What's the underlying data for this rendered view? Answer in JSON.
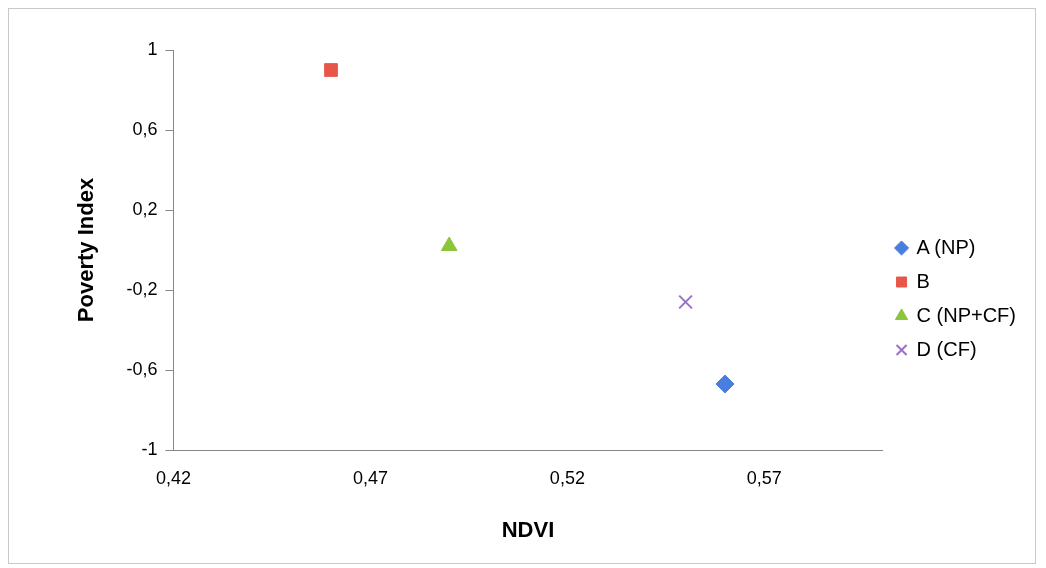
{
  "chart_data": {
    "type": "scatter",
    "xlabel": "NDVI",
    "ylabel": "Poverty Index",
    "series": [
      {
        "name": "A (NP)",
        "color": "#4a7ede",
        "x": [
          0.56
        ],
        "values": [
          -0.67
        ],
        "marker": "diamond"
      },
      {
        "name": "B",
        "color": "#e8564a",
        "x": [
          0.46
        ],
        "values": [
          0.9
        ],
        "marker": "square"
      },
      {
        "name": "C (NP+CF)",
        "color": "#8cc43c",
        "x": [
          0.49
        ],
        "values": [
          0.02
        ],
        "marker": "triangle"
      },
      {
        "name": "D (CF)",
        "color": "#9a70c8",
        "x": [
          0.55
        ],
        "values": [
          -0.26
        ],
        "marker": "cross"
      }
    ],
    "xlim": [
      0.42,
      0.6
    ],
    "ylim": [
      -1,
      1
    ],
    "xticks": [
      {
        "value": 0.42,
        "label": "0,42"
      },
      {
        "value": 0.47,
        "label": "0,47"
      },
      {
        "value": 0.52,
        "label": "0,52"
      },
      {
        "value": 0.57,
        "label": "0,57"
      }
    ],
    "yticks": [
      {
        "value": -1,
        "label": "-1"
      },
      {
        "value": -0.6,
        "label": "-0,6"
      },
      {
        "value": -0.2,
        "label": "-0,2"
      },
      {
        "value": 0.2,
        "label": "0,2"
      },
      {
        "value": 0.6,
        "label": "0,6"
      },
      {
        "value": 1,
        "label": "1"
      }
    ],
    "grid": false,
    "legend": "right"
  }
}
